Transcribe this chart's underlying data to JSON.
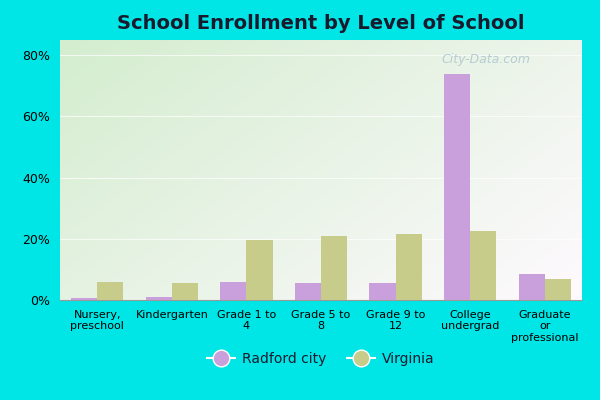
{
  "title": "School Enrollment by Level of School",
  "categories": [
    "Nursery,\npreschool",
    "Kindergarten",
    "Grade 1 to\n4",
    "Grade 5 to\n8",
    "Grade 9 to\n12",
    "College\nundergrad",
    "Graduate\nor\nprofessional"
  ],
  "radford_values": [
    0.5,
    1.0,
    6.0,
    5.5,
    5.5,
    74.0,
    8.5
  ],
  "virginia_values": [
    6.0,
    5.5,
    19.5,
    21.0,
    21.5,
    22.5,
    7.0
  ],
  "radford_color": "#c9a0dc",
  "virginia_color": "#c8cc8a",
  "title_fontsize": 14,
  "legend_labels": [
    "Radford city",
    "Virginia"
  ],
  "yticks": [
    0,
    20,
    40,
    60,
    80
  ],
  "ylim": [
    0,
    85
  ],
  "background_outer": "#00e5e5",
  "watermark": "City-Data.com",
  "title_color": "#1a1a2e"
}
